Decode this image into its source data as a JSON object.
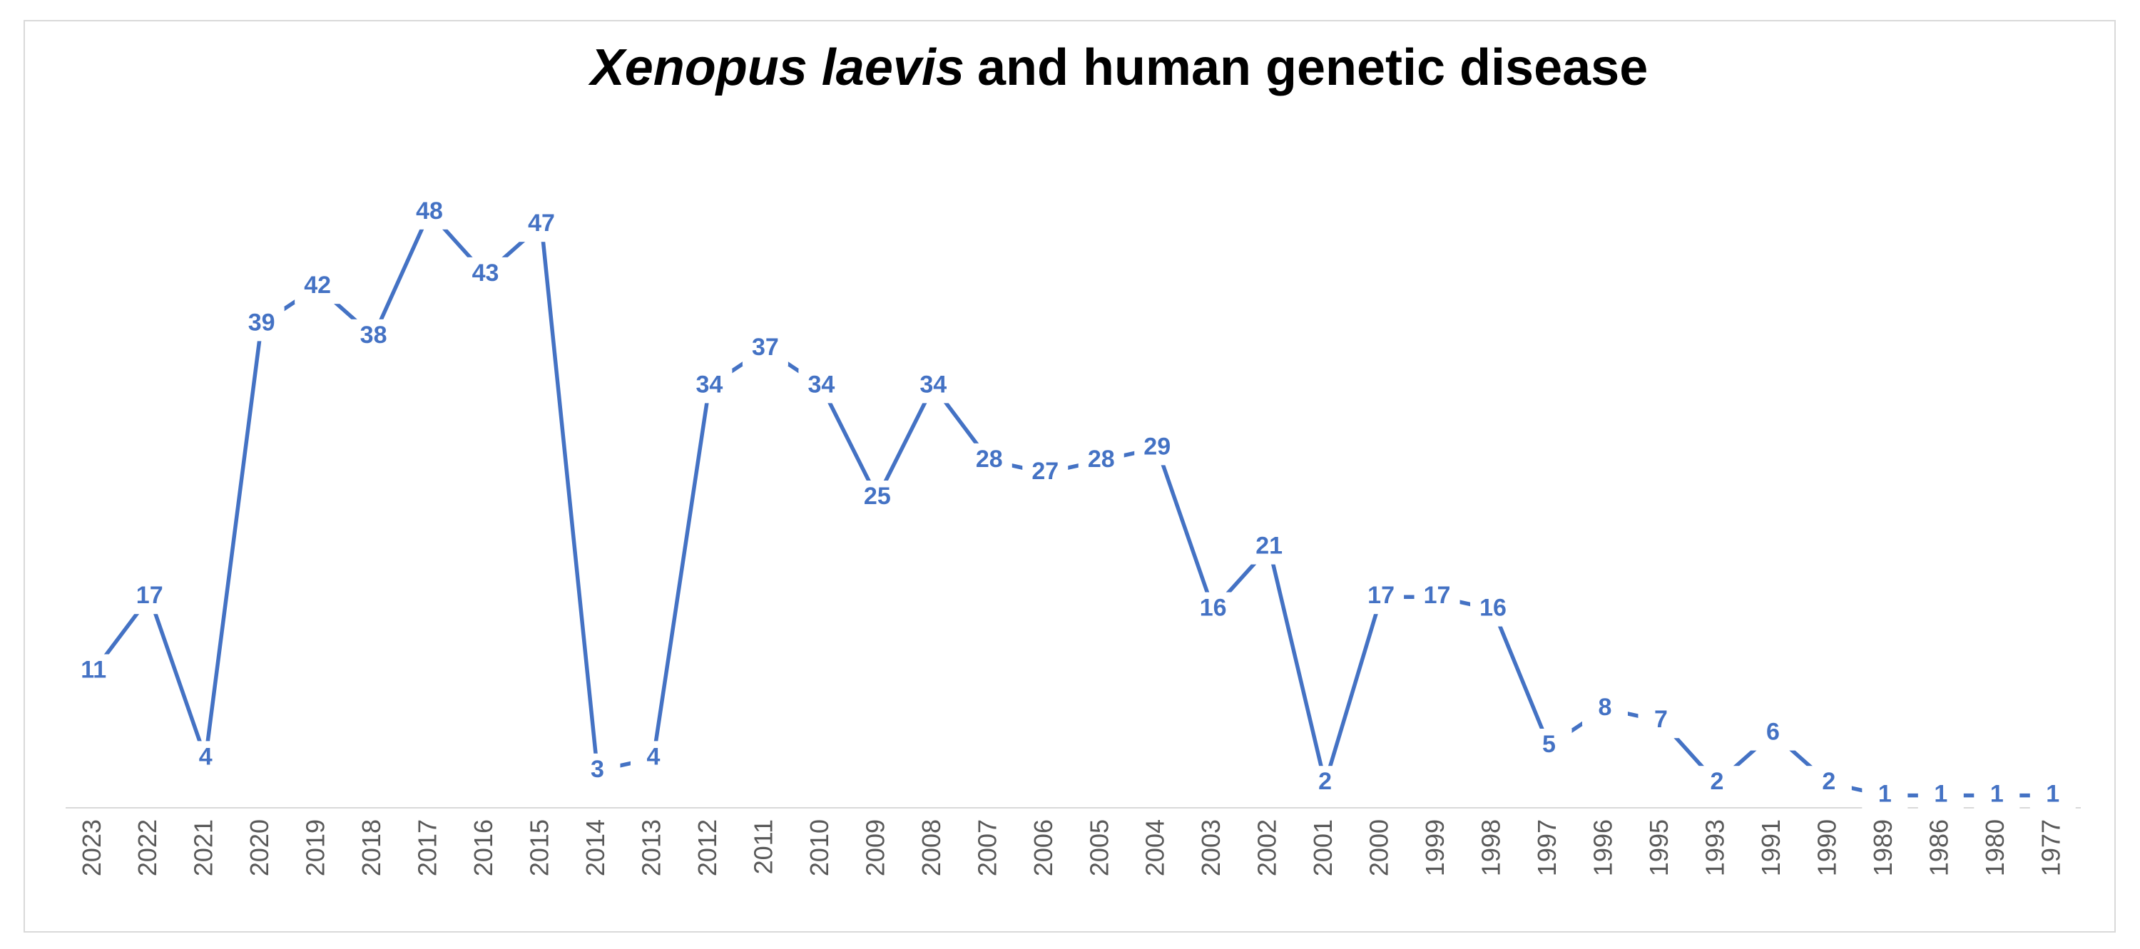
{
  "chart_data": {
    "type": "line",
    "title": {
      "italic": "Xenopus laevis",
      "rest": "and human genetic disease"
    },
    "categories": [
      "2023",
      "2022",
      "2021",
      "2020",
      "2019",
      "2018",
      "2017",
      "2016",
      "2015",
      "2014",
      "2013",
      "2012",
      "2011",
      "2010",
      "2009",
      "2008",
      "2007",
      "2006",
      "2005",
      "2004",
      "2003",
      "2002",
      "2001",
      "2000",
      "1999",
      "1998",
      "1997",
      "1996",
      "1995",
      "1993",
      "1991",
      "1990",
      "1989",
      "1986",
      "1980",
      "1977"
    ],
    "values": [
      11,
      17,
      4,
      39,
      42,
      38,
      48,
      43,
      47,
      3,
      4,
      34,
      37,
      34,
      25,
      34,
      28,
      27,
      28,
      29,
      16,
      21,
      2,
      17,
      17,
      16,
      5,
      8,
      7,
      2,
      6,
      2,
      1,
      1,
      1,
      1
    ],
    "color": "#4472c4",
    "ylim": [
      0,
      50
    ],
    "grid": false
  }
}
